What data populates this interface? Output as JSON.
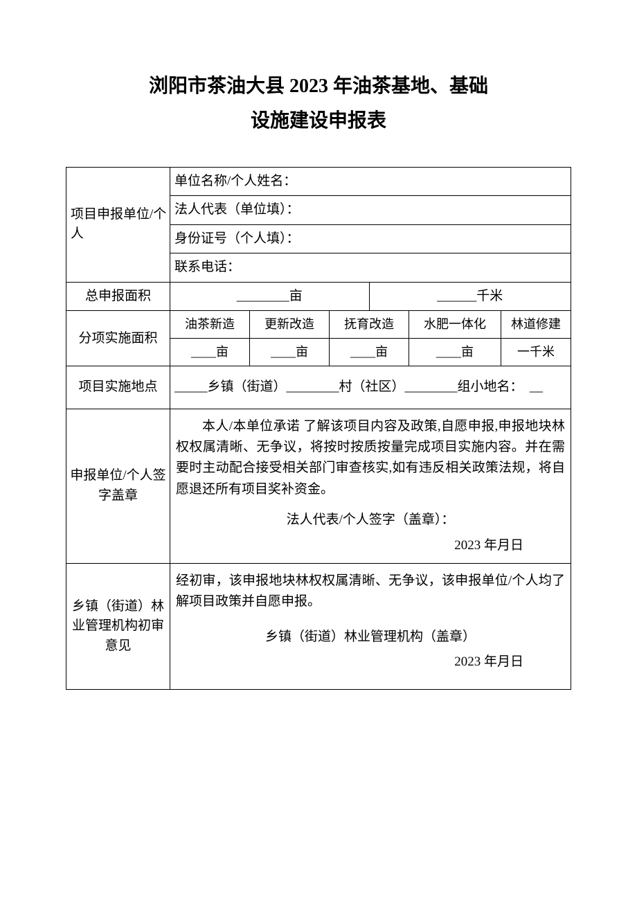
{
  "title_line1": "浏阳市茶油大县 2023 年油茶基地、基础",
  "title_line2": "设施建设申报表",
  "rows": {
    "applicant": {
      "label": "项目申报单位/个人",
      "name_label": "单位名称/个人姓名：",
      "legal_rep_label": "法人代表（单位填）：",
      "id_label": "身份证号（个人填）：",
      "phone_label": "联系电话："
    },
    "total_area": {
      "label": "总申报面积",
      "mu": "________亩",
      "km": "______千米"
    },
    "sub_area": {
      "label": "分项实施面积",
      "headers": [
        "油茶新造",
        "更新改造",
        "抚育改造",
        "水肥一体化",
        "林道修建"
      ],
      "values": [
        "____亩",
        "____亩",
        "____亩",
        "____亩",
        "一千米"
      ]
    },
    "location": {
      "label": "项目实施地点",
      "text": "_____乡镇（街道）________村（社区）________组小地名：  __"
    },
    "declaration": {
      "label": "申报单位/个人签字盖章",
      "body": "本人/本单位承诺 了解该项目内容及政策,自愿申报,申报地块林权权属清晰、无争议，将按时按质按量完成项目实施内容。并在需要时主动配合接受相关部门审查核实,如有违反相关政策法规，将自愿退还所有项目奖补资金。",
      "sig": "法人代表/个人签字（盖章）：",
      "date": "2023 年月日"
    },
    "review": {
      "label": "乡镇（街道）林业管理机构初审意见",
      "body": "经初审，该申报地块林权权属清晰、无争议，该申报单位/个人均了解项目政策并自愿申报。",
      "sig": "乡镇（街道）林业管理机构（盖章）",
      "date": "2023 年月日"
    }
  }
}
